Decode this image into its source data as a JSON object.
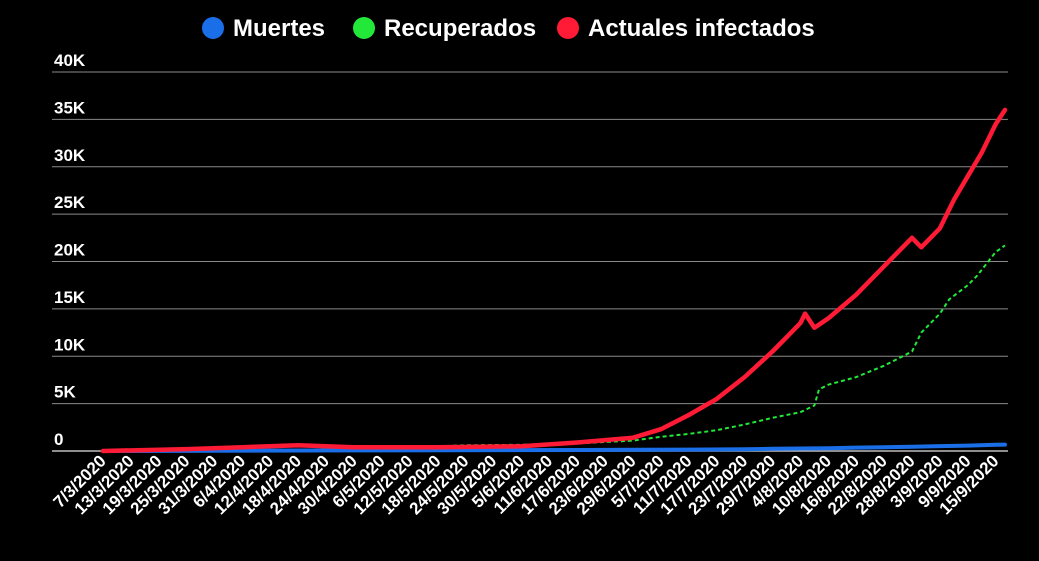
{
  "chart_data": {
    "type": "line",
    "legend_position": "top-center",
    "grid": true,
    "ylim": [
      0,
      40000
    ],
    "yticks": [
      {
        "value": 0,
        "label": "0"
      },
      {
        "value": 5000,
        "label": "5K"
      },
      {
        "value": 10000,
        "label": "10K"
      },
      {
        "value": 15000,
        "label": "15K"
      },
      {
        "value": 20000,
        "label": "20K"
      },
      {
        "value": 25000,
        "label": "25K"
      },
      {
        "value": 30000,
        "label": "30K"
      },
      {
        "value": 35000,
        "label": "35K"
      },
      {
        "value": 40000,
        "label": "40K"
      }
    ],
    "xrange": [
      "2020-03-07",
      "2020-09-17"
    ],
    "xticks": [
      {
        "date": "2020-03-07",
        "label": "7/3/2020"
      },
      {
        "date": "2020-03-13",
        "label": "13/3/2020"
      },
      {
        "date": "2020-03-19",
        "label": "19/3/2020"
      },
      {
        "date": "2020-03-25",
        "label": "25/3/2020"
      },
      {
        "date": "2020-03-31",
        "label": "31/3/2020"
      },
      {
        "date": "2020-04-06",
        "label": "6/4/2020"
      },
      {
        "date": "2020-04-12",
        "label": "12/4/2020"
      },
      {
        "date": "2020-04-18",
        "label": "18/4/2020"
      },
      {
        "date": "2020-04-24",
        "label": "24/4/2020"
      },
      {
        "date": "2020-04-30",
        "label": "30/4/2020"
      },
      {
        "date": "2020-05-06",
        "label": "6/5/2020"
      },
      {
        "date": "2020-05-12",
        "label": "12/5/2020"
      },
      {
        "date": "2020-05-18",
        "label": "18/5/2020"
      },
      {
        "date": "2020-05-24",
        "label": "24/5/2020"
      },
      {
        "date": "2020-05-30",
        "label": "30/5/2020"
      },
      {
        "date": "2020-06-05",
        "label": "5/6/2020"
      },
      {
        "date": "2020-06-11",
        "label": "11/6/2020"
      },
      {
        "date": "2020-06-17",
        "label": "17/6/2020"
      },
      {
        "date": "2020-06-23",
        "label": "23/6/2020"
      },
      {
        "date": "2020-06-29",
        "label": "29/6/2020"
      },
      {
        "date": "2020-07-05",
        "label": "5/7/2020"
      },
      {
        "date": "2020-07-11",
        "label": "11/7/2020"
      },
      {
        "date": "2020-07-17",
        "label": "17/7/2020"
      },
      {
        "date": "2020-07-23",
        "label": "23/7/2020"
      },
      {
        "date": "2020-07-29",
        "label": "29/7/2020"
      },
      {
        "date": "2020-08-04",
        "label": "4/8/2020"
      },
      {
        "date": "2020-08-10",
        "label": "10/8/2020"
      },
      {
        "date": "2020-08-16",
        "label": "16/8/2020"
      },
      {
        "date": "2020-08-22",
        "label": "22/8/2020"
      },
      {
        "date": "2020-08-28",
        "label": "28/8/2020"
      },
      {
        "date": "2020-09-03",
        "label": "3/9/2020"
      },
      {
        "date": "2020-09-09",
        "label": "9/9/2020"
      },
      {
        "date": "2020-09-15",
        "label": "15/9/2020"
      }
    ],
    "series": [
      {
        "name": "Muertes",
        "color": "#1a6fe8",
        "line_style": "solid",
        "points": [
          [
            "2020-03-07",
            0
          ],
          [
            "2020-03-31",
            20
          ],
          [
            "2020-04-30",
            60
          ],
          [
            "2020-05-30",
            90
          ],
          [
            "2020-06-17",
            110
          ],
          [
            "2020-06-29",
            130
          ],
          [
            "2020-07-11",
            150
          ],
          [
            "2020-07-23",
            180
          ],
          [
            "2020-07-29",
            230
          ],
          [
            "2020-08-04",
            260
          ],
          [
            "2020-08-10",
            300
          ],
          [
            "2020-08-16",
            360
          ],
          [
            "2020-08-22",
            400
          ],
          [
            "2020-08-28",
            450
          ],
          [
            "2020-09-03",
            520
          ],
          [
            "2020-09-09",
            570
          ],
          [
            "2020-09-15",
            650
          ],
          [
            "2020-09-17",
            680
          ]
        ]
      },
      {
        "name": "Recuperados",
        "color": "#22e83a",
        "line_style": "dashed",
        "points": [
          [
            "2020-03-07",
            0
          ],
          [
            "2020-03-31",
            0
          ],
          [
            "2020-04-06",
            50
          ],
          [
            "2020-04-18",
            100
          ],
          [
            "2020-04-24",
            200
          ],
          [
            "2020-04-30",
            300
          ],
          [
            "2020-05-12",
            400
          ],
          [
            "2020-05-24",
            600
          ],
          [
            "2020-06-05",
            650
          ],
          [
            "2020-06-17",
            800
          ],
          [
            "2020-06-29",
            1100
          ],
          [
            "2020-07-05",
            1500
          ],
          [
            "2020-07-11",
            1800
          ],
          [
            "2020-07-17",
            2200
          ],
          [
            "2020-07-23",
            2800
          ],
          [
            "2020-07-29",
            3500
          ],
          [
            "2020-08-04",
            4100
          ],
          [
            "2020-08-07",
            4800
          ],
          [
            "2020-08-08",
            6500
          ],
          [
            "2020-08-10",
            7000
          ],
          [
            "2020-08-16",
            7800
          ],
          [
            "2020-08-22",
            9000
          ],
          [
            "2020-08-28",
            10500
          ],
          [
            "2020-08-30",
            12500
          ],
          [
            "2020-09-03",
            14500
          ],
          [
            "2020-09-05",
            16000
          ],
          [
            "2020-09-09",
            17500
          ],
          [
            "2020-09-11",
            18500
          ],
          [
            "2020-09-15",
            21000
          ],
          [
            "2020-09-17",
            21700
          ]
        ]
      },
      {
        "name": "Actuales infectados",
        "color": "#ff1a35",
        "line_style": "solid",
        "points": [
          [
            "2020-03-07",
            0
          ],
          [
            "2020-03-25",
            200
          ],
          [
            "2020-04-06",
            400
          ],
          [
            "2020-04-18",
            600
          ],
          [
            "2020-04-24",
            500
          ],
          [
            "2020-04-30",
            400
          ],
          [
            "2020-05-18",
            400
          ],
          [
            "2020-06-05",
            500
          ],
          [
            "2020-06-17",
            900
          ],
          [
            "2020-06-29",
            1400
          ],
          [
            "2020-07-05",
            2300
          ],
          [
            "2020-07-11",
            3800
          ],
          [
            "2020-07-17",
            5500
          ],
          [
            "2020-07-23",
            7800
          ],
          [
            "2020-07-29",
            10500
          ],
          [
            "2020-08-01",
            12000
          ],
          [
            "2020-08-04",
            13500
          ],
          [
            "2020-08-05",
            14500
          ],
          [
            "2020-08-07",
            13000
          ],
          [
            "2020-08-10",
            14000
          ],
          [
            "2020-08-16",
            16500
          ],
          [
            "2020-08-22",
            19500
          ],
          [
            "2020-08-28",
            22500
          ],
          [
            "2020-08-30",
            21500
          ],
          [
            "2020-09-03",
            23500
          ],
          [
            "2020-09-06",
            26500
          ],
          [
            "2020-09-09",
            29000
          ],
          [
            "2020-09-12",
            31500
          ],
          [
            "2020-09-15",
            34500
          ],
          [
            "2020-09-17",
            36000
          ]
        ]
      }
    ]
  }
}
